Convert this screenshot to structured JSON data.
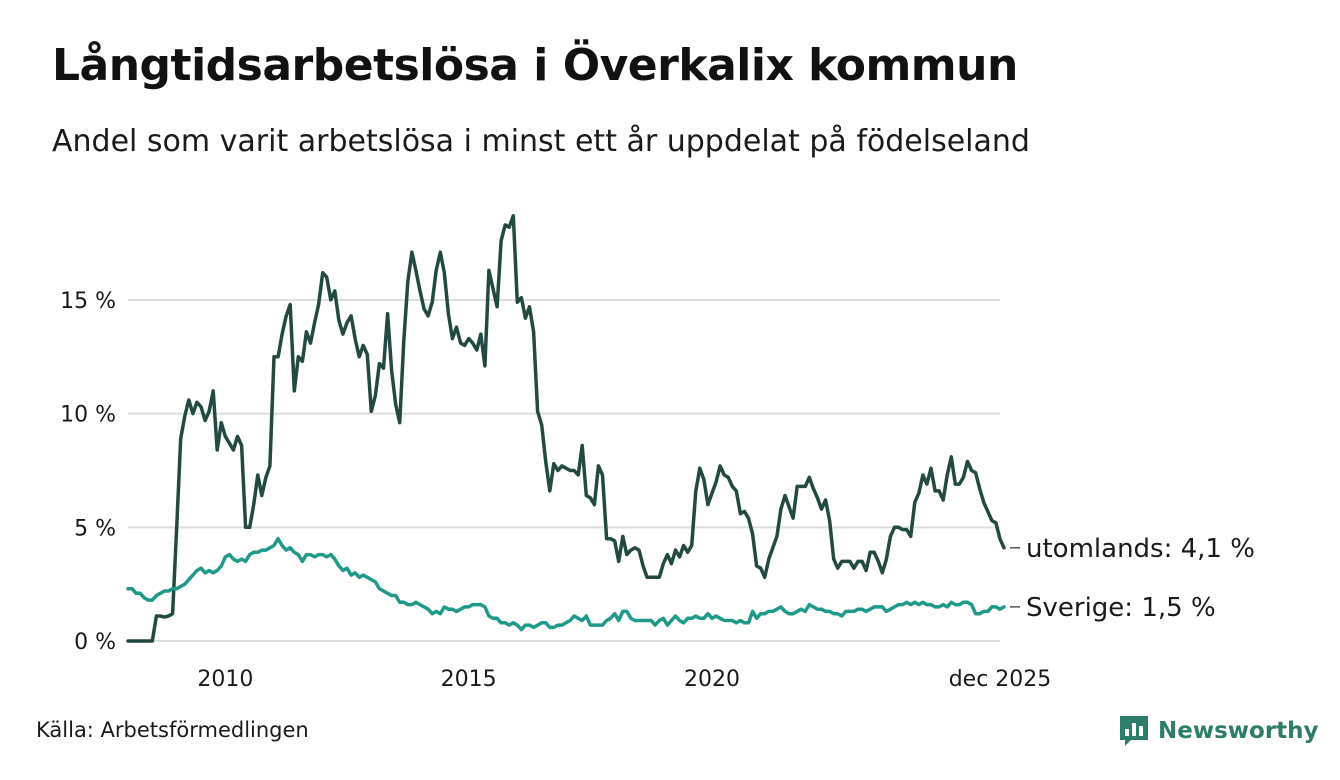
{
  "title": "Långtidsarbetslösa i Överkalix kommun",
  "subtitle": "Andel som varit arbetslösa i minst ett år uppdelat på födelseland",
  "source": "Källa: Arbetsförmedlingen",
  "brand": {
    "name": "Newsworthy",
    "icon": "newsworthy-logo-icon"
  },
  "colors": {
    "utomlands": "#234a42",
    "sverige": "#1f9a8a",
    "grid": "#dedede",
    "brand": "#2e7d6a"
  },
  "chart_data": {
    "type": "line",
    "title": "Långtidsarbetslösa i Överkalix kommun",
    "subtitle": "Andel som varit arbetslösa i minst ett år uppdelat på födelseland",
    "xlabel": "",
    "ylabel": "",
    "x_start": 2008.0,
    "x_step": 0.08333,
    "xlim": [
      2008.0,
      2025.917
    ],
    "ylim": [
      0,
      19
    ],
    "yticks": [
      0,
      5,
      10,
      15
    ],
    "ytick_labels": [
      "0 %",
      "5 %",
      "10 %",
      "15 %"
    ],
    "xticks": [
      2010,
      2015,
      2020,
      2025.917
    ],
    "xtick_labels": [
      "2010",
      "2015",
      "2020",
      "dec 2025"
    ],
    "grid": true,
    "series": [
      {
        "name": "utomlands",
        "end_label": "utomlands: 4,1 %",
        "color": "#234a42",
        "values": [
          0,
          0,
          0,
          0,
          0,
          0,
          0,
          1.1,
          1.1,
          1.05,
          1.1,
          1.2,
          5.0,
          8.9,
          9.9,
          10.6,
          10.0,
          10.5,
          10.3,
          9.7,
          10.1,
          11.0,
          8.4,
          9.6,
          9.0,
          8.7,
          8.4,
          9.0,
          8.6,
          5.0,
          5.0,
          6.0,
          7.3,
          6.4,
          7.2,
          7.7,
          12.5,
          12.5,
          13.5,
          14.3,
          14.8,
          11.0,
          12.5,
          12.3,
          13.6,
          13.1,
          14.0,
          14.8,
          16.2,
          16.0,
          15.0,
          15.4,
          14.1,
          13.5,
          14.0,
          14.3,
          13.3,
          12.5,
          13.0,
          12.6,
          10.1,
          10.8,
          12.2,
          12.0,
          14.4,
          11.9,
          10.4,
          9.6,
          13.2,
          15.8,
          17.1,
          16.3,
          15.4,
          14.6,
          14.3,
          14.9,
          16.3,
          17.1,
          16.2,
          14.4,
          13.3,
          13.8,
          13.1,
          13.0,
          13.3,
          13.1,
          12.8,
          13.5,
          12.1,
          16.3,
          15.5,
          14.7,
          17.6,
          18.3,
          18.2,
          18.7,
          14.9,
          15.1,
          14.2,
          14.7,
          13.6,
          10.1,
          9.5,
          7.9,
          6.6,
          7.8,
          7.5,
          7.7,
          7.6,
          7.5,
          7.5,
          7.3,
          8.6,
          6.4,
          6.3,
          6.0,
          7.7,
          7.3,
          4.5,
          4.5,
          4.4,
          3.5,
          4.6,
          3.8,
          4.0,
          4.1,
          4.0,
          3.3,
          2.8,
          2.8,
          2.8,
          2.8,
          3.4,
          3.8,
          3.4,
          4.0,
          3.7,
          4.2,
          3.9,
          4.2,
          6.6,
          7.6,
          7.1,
          6.0,
          6.5,
          7.0,
          7.7,
          7.3,
          7.2,
          6.8,
          6.6,
          5.6,
          5.7,
          5.4,
          4.7,
          3.3,
          3.2,
          2.8,
          3.6,
          4.1,
          4.6,
          5.8,
          6.4,
          5.9,
          5.4,
          6.8,
          6.8,
          6.8,
          7.2,
          6.7,
          6.3,
          5.8,
          6.2,
          5.3,
          3.6,
          3.2,
          3.5,
          3.5,
          3.5,
          3.2,
          3.5,
          3.5,
          3.1,
          3.9,
          3.9,
          3.5,
          3.0,
          3.6,
          4.6,
          5.0,
          5.0,
          4.9,
          4.9,
          4.6,
          6.1,
          6.5,
          7.3,
          6.9,
          7.6,
          6.6,
          6.6,
          6.2,
          7.3,
          8.1,
          6.9,
          6.9,
          7.2,
          7.9,
          7.5,
          7.4,
          6.7,
          6.1,
          5.7,
          5.3,
          5.2,
          4.5,
          4.1
        ]
      },
      {
        "name": "Sverige",
        "end_label": "Sverige: 1,5 %",
        "color": "#1f9a8a",
        "values": [
          2.3,
          2.3,
          2.1,
          2.1,
          1.9,
          1.8,
          1.8,
          2.0,
          2.1,
          2.2,
          2.2,
          2.3,
          2.3,
          2.4,
          2.5,
          2.7,
          2.9,
          3.1,
          3.2,
          3.0,
          3.1,
          3.0,
          3.1,
          3.3,
          3.7,
          3.8,
          3.6,
          3.5,
          3.6,
          3.5,
          3.8,
          3.9,
          3.9,
          4.0,
          4.0,
          4.1,
          4.2,
          4.5,
          4.2,
          4.0,
          4.1,
          3.9,
          3.8,
          3.5,
          3.8,
          3.8,
          3.7,
          3.8,
          3.8,
          3.7,
          3.8,
          3.6,
          3.3,
          3.1,
          3.2,
          2.9,
          3.0,
          2.8,
          2.9,
          2.8,
          2.7,
          2.6,
          2.3,
          2.2,
          2.1,
          2.0,
          2.0,
          1.7,
          1.7,
          1.6,
          1.6,
          1.7,
          1.6,
          1.5,
          1.4,
          1.2,
          1.3,
          1.2,
          1.5,
          1.4,
          1.4,
          1.3,
          1.4,
          1.5,
          1.5,
          1.6,
          1.6,
          1.6,
          1.5,
          1.1,
          1.0,
          1.0,
          0.8,
          0.8,
          0.7,
          0.8,
          0.7,
          0.5,
          0.7,
          0.7,
          0.6,
          0.7,
          0.8,
          0.8,
          0.6,
          0.6,
          0.7,
          0.7,
          0.8,
          0.9,
          1.1,
          1.0,
          0.9,
          1.1,
          0.7,
          0.7,
          0.7,
          0.7,
          0.9,
          1.0,
          1.2,
          0.9,
          1.3,
          1.3,
          1.0,
          0.9,
          0.9,
          0.9,
          0.9,
          0.9,
          0.7,
          0.9,
          1.0,
          0.7,
          0.9,
          1.1,
          0.9,
          0.8,
          1.0,
          1.0,
          1.1,
          1.0,
          1.0,
          1.2,
          1.0,
          1.1,
          1.0,
          0.9,
          0.9,
          0.9,
          0.8,
          0.9,
          0.8,
          0.8,
          1.3,
          1.0,
          1.2,
          1.2,
          1.3,
          1.3,
          1.4,
          1.5,
          1.3,
          1.2,
          1.2,
          1.3,
          1.4,
          1.3,
          1.6,
          1.5,
          1.4,
          1.4,
          1.3,
          1.3,
          1.2,
          1.2,
          1.1,
          1.3,
          1.3,
          1.3,
          1.4,
          1.4,
          1.3,
          1.4,
          1.5,
          1.5,
          1.5,
          1.3,
          1.4,
          1.5,
          1.6,
          1.6,
          1.7,
          1.6,
          1.7,
          1.6,
          1.7,
          1.6,
          1.6,
          1.5,
          1.5,
          1.6,
          1.5,
          1.7,
          1.6,
          1.6,
          1.7,
          1.7,
          1.6,
          1.2,
          1.2,
          1.3,
          1.3,
          1.5,
          1.5,
          1.4,
          1.5
        ]
      }
    ]
  }
}
